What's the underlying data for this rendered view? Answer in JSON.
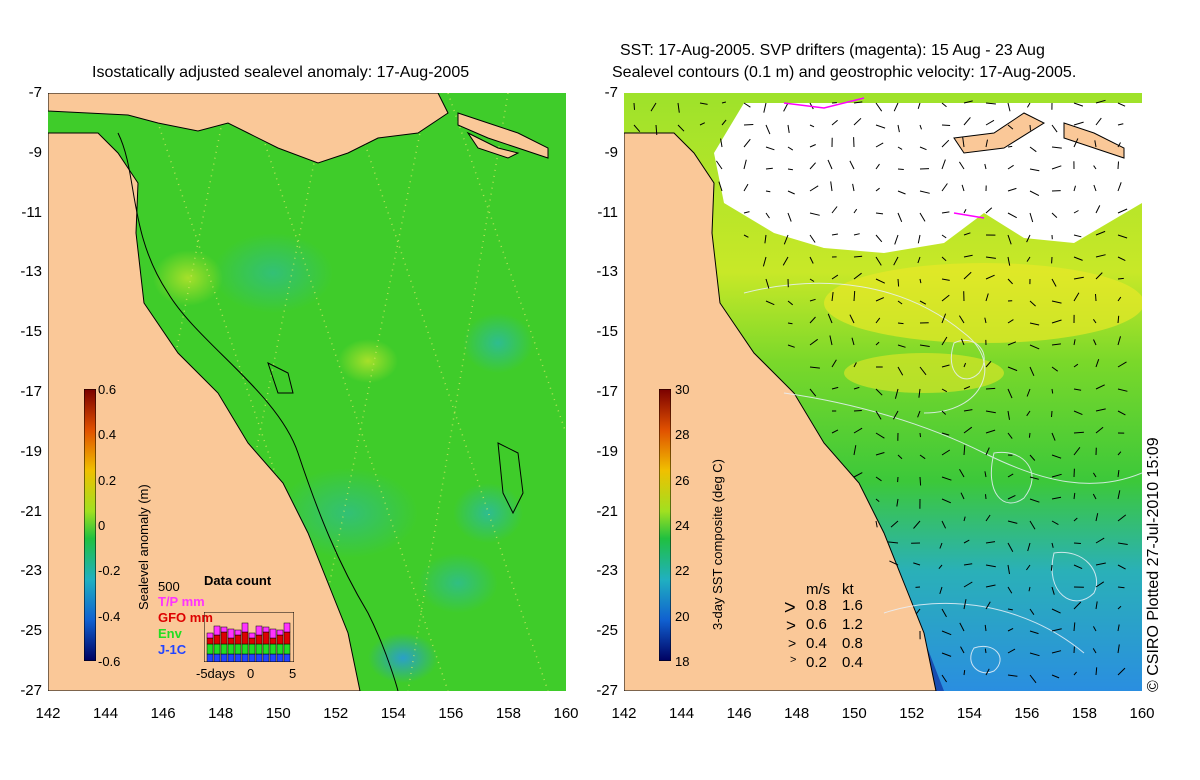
{
  "left_panel": {
    "title": "Isostatically adjusted sealevel anomaly: 17-Aug-2005",
    "colorbar": {
      "label": "Sealevel anomaly (m)",
      "ticks": [
        "0.6",
        "0.4",
        "0.2",
        "0",
        "-0.2",
        "-0.4",
        "-0.6"
      ],
      "range": [
        -0.6,
        0.6
      ]
    },
    "data_count": {
      "title": "Data count",
      "max_label": "500",
      "series": [
        {
          "label": "T/P mm",
          "color": "#ff33ff"
        },
        {
          "label": "GFO mm",
          "color": "#dd0000"
        },
        {
          "label": "Env",
          "color": "#22dd22"
        },
        {
          "label": "J-1C",
          "color": "#2244ff"
        }
      ],
      "x_ticks": [
        "-5days",
        "0",
        "5"
      ]
    }
  },
  "right_panel": {
    "title_line1": "SST: 17-Aug-2005. SVP drifters (magenta): 15 Aug - 23 Aug",
    "title_line2": "Sealevel contours (0.1 m) and geostrophic velocity: 17-Aug-2005.",
    "colorbar": {
      "label": "3-day SST composite (deg C)",
      "ticks": [
        "30",
        "28",
        "26",
        "24",
        "22",
        "20",
        "18"
      ],
      "range": [
        18,
        30
      ]
    },
    "speed_legend": {
      "header_ms": "m/s",
      "header_kt": "kt",
      "rows": [
        {
          "ms": "0.8",
          "kt": "1.6"
        },
        {
          "ms": "0.6",
          "kt": "1.2"
        },
        {
          "ms": "0.4",
          "kt": "0.8"
        },
        {
          "ms": "0.2",
          "kt": "0.4"
        }
      ]
    }
  },
  "axes": {
    "y_ticks": [
      "-7",
      "-9",
      "-11",
      "-13",
      "-15",
      "-17",
      "-19",
      "-21",
      "-23",
      "-25",
      "-27"
    ],
    "x_ticks": [
      "142",
      "144",
      "146",
      "148",
      "150",
      "152",
      "154",
      "156",
      "158",
      "160"
    ],
    "lon_range": [
      142,
      160
    ],
    "lat_range": [
      -27,
      -7
    ]
  },
  "copyright": "© CSIRO Plotted 27-Jul-2010 15:09",
  "colors": {
    "land": "#fac898",
    "ocean_green": "#3fcc2a",
    "cloud": "#ffffff"
  }
}
